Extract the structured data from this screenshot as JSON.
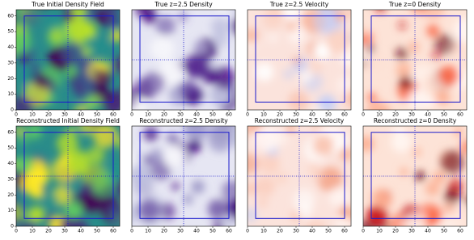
{
  "chart_data": [
    {
      "type": "heatmap",
      "title": "True Initial Density Field",
      "colormap": "viridis",
      "xlim": [
        0,
        64
      ],
      "ylim": [
        0,
        64
      ],
      "xticks": [
        0,
        10,
        20,
        30,
        40,
        50,
        60
      ],
      "yticks": [
        0,
        10,
        20,
        30,
        40,
        50,
        60
      ],
      "box": {
        "x": [
          5,
          60
        ],
        "y": [
          5,
          60
        ]
      },
      "crosshair": 32
    },
    {
      "type": "heatmap",
      "title": "True z=2.5 Density",
      "colormap": "purples",
      "xlim": [
        0,
        64
      ],
      "ylim": [
        0,
        64
      ],
      "xticks": [
        0,
        10,
        20,
        30,
        40,
        50,
        60
      ],
      "box": {
        "x": [
          5,
          60
        ],
        "y": [
          5,
          60
        ]
      },
      "crosshair": 32
    },
    {
      "type": "heatmap",
      "title": "True z=2.5 Velocity",
      "colormap": "bwr",
      "xlim": [
        0,
        64
      ],
      "ylim": [
        0,
        64
      ],
      "xticks": [
        0,
        10,
        20,
        30,
        40,
        50,
        60
      ],
      "box": {
        "x": [
          5,
          60
        ],
        "y": [
          5,
          60
        ]
      },
      "crosshair": 32
    },
    {
      "type": "heatmap",
      "title": "True z=0 Density",
      "colormap": "reds",
      "xlim": [
        0,
        64
      ],
      "ylim": [
        0,
        64
      ],
      "xticks": [
        0,
        10,
        20,
        30,
        40,
        50,
        60
      ],
      "box": {
        "x": [
          5,
          60
        ],
        "y": [
          5,
          60
        ]
      },
      "crosshair": 32
    },
    {
      "type": "heatmap",
      "title": "Reconstructed Initial Density Field",
      "colormap": "viridis",
      "xlim": [
        0,
        64
      ],
      "ylim": [
        0,
        64
      ],
      "xticks": [
        0,
        10,
        20,
        30,
        40,
        50,
        60
      ],
      "yticks": [
        0,
        10,
        20,
        30,
        40,
        50,
        60
      ],
      "box": {
        "x": [
          5,
          60
        ],
        "y": [
          5,
          60
        ]
      },
      "crosshair": 32
    },
    {
      "type": "heatmap",
      "title": "Reconstructed z=2.5 Density",
      "colormap": "purples",
      "xlim": [
        0,
        64
      ],
      "ylim": [
        0,
        64
      ],
      "xticks": [
        0,
        10,
        20,
        30,
        40,
        50,
        60
      ],
      "box": {
        "x": [
          5,
          60
        ],
        "y": [
          5,
          60
        ]
      },
      "crosshair": 32
    },
    {
      "type": "heatmap",
      "title": "Reconstructed z=2.5 Velocity",
      "colormap": "bwr",
      "xlim": [
        0,
        64
      ],
      "ylim": [
        0,
        64
      ],
      "xticks": [
        0,
        10,
        20,
        30,
        40,
        50,
        60
      ],
      "box": {
        "x": [
          5,
          60
        ],
        "y": [
          5,
          60
        ]
      },
      "crosshair": 32
    },
    {
      "type": "heatmap",
      "title": "Reconstructed z=0 Density",
      "colormap": "reds",
      "xlim": [
        0,
        64
      ],
      "ylim": [
        0,
        64
      ],
      "xticks": [
        0,
        10,
        20,
        30,
        40,
        50,
        60
      ],
      "box": {
        "x": [
          5,
          60
        ],
        "y": [
          5,
          60
        ]
      },
      "crosshair": 32
    }
  ]
}
